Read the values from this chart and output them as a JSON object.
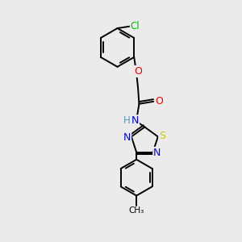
{
  "background_color": "#ebebeb",
  "bond_color": "#000000",
  "bond_width": 1.4,
  "atoms": {
    "Cl": {
      "color": "#00bb00",
      "fontsize": 8.5
    },
    "O": {
      "color": "#ff0000",
      "fontsize": 9
    },
    "N": {
      "color": "#0000ff",
      "fontsize": 9
    },
    "S": {
      "color": "#cccc00",
      "fontsize": 9
    },
    "H": {
      "color": "#000000",
      "fontsize": 8
    }
  },
  "figsize": [
    3.0,
    3.0
  ],
  "dpi": 100,
  "xlim": [
    0,
    6
  ],
  "ylim": [
    0,
    10
  ]
}
